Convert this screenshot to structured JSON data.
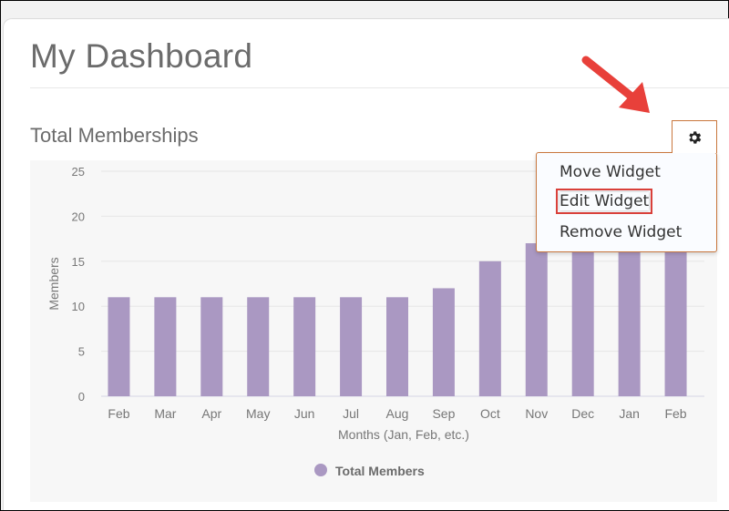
{
  "page": {
    "title": "My Dashboard"
  },
  "widget": {
    "title": "Total Memberships",
    "menu": {
      "icon": "gear-icon",
      "items": [
        {
          "label": "Move Widget",
          "highlighted": false
        },
        {
          "label": "Edit Widget",
          "highlighted": true
        },
        {
          "label": "Remove Widget",
          "highlighted": false
        }
      ]
    }
  },
  "colors": {
    "bar": "#aa98c2",
    "menu_border": "#c9773d",
    "highlight": "#d9403a",
    "arrow": "#e8403a"
  },
  "chart_data": {
    "type": "bar",
    "title": "Total Memberships",
    "xlabel": "Months (Jan, Feb, etc.)",
    "ylabel": "Members",
    "ylim": [
      0,
      25
    ],
    "yticks": [
      0,
      5,
      10,
      15,
      20,
      25
    ],
    "grid": true,
    "legend_position": "bottom",
    "categories": [
      "Feb",
      "Mar",
      "Apr",
      "May",
      "Jun",
      "Jul",
      "Aug",
      "Sep",
      "Oct",
      "Nov",
      "Dec",
      "Jan",
      "Feb"
    ],
    "series": [
      {
        "name": "Total Members",
        "values": [
          11,
          11,
          11,
          11,
          11,
          11,
          11,
          12,
          15,
          17,
          17,
          17,
          17
        ]
      }
    ]
  }
}
